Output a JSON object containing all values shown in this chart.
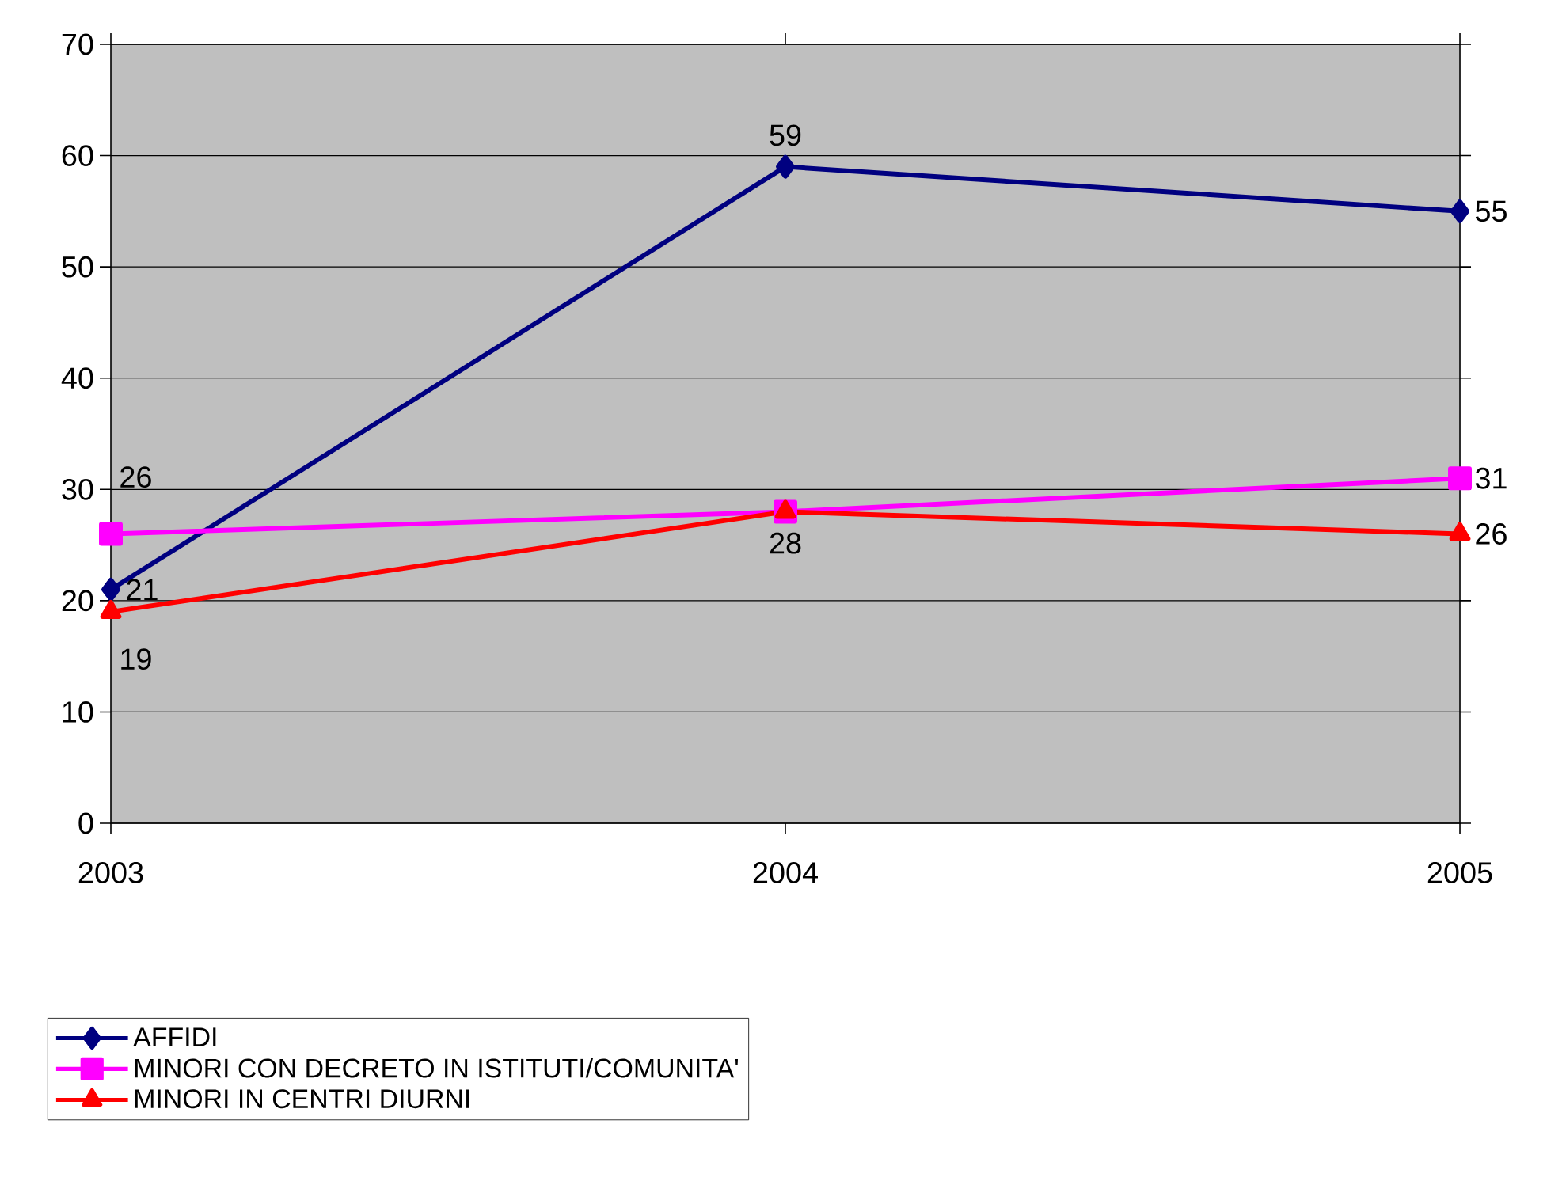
{
  "chart_data": {
    "type": "line",
    "categories": [
      "2003",
      "2004",
      "2005"
    ],
    "series": [
      {
        "name": "AFFIDI",
        "color": "#000080",
        "marker": "diamond",
        "values": [
          21,
          59,
          55
        ],
        "value_labels": [
          "21",
          "59",
          "55"
        ]
      },
      {
        "name": "MINORI CON DECRETO IN ISTITUTI/COMUNITA'",
        "color": "#ff00ff",
        "marker": "square",
        "values": [
          26,
          28,
          31
        ],
        "value_labels": [
          "26",
          null,
          "31"
        ]
      },
      {
        "name": "MINORI IN CENTRI DIURNI",
        "color": "#ff0000",
        "marker": "triangle",
        "values": [
          19,
          28,
          26
        ],
        "value_labels": [
          "19",
          "28",
          "26"
        ]
      }
    ],
    "ylim": [
      0,
      70
    ],
    "yticks": [
      0,
      10,
      20,
      30,
      40,
      50,
      60,
      70
    ],
    "grid": "y",
    "legend": "bottom left"
  }
}
